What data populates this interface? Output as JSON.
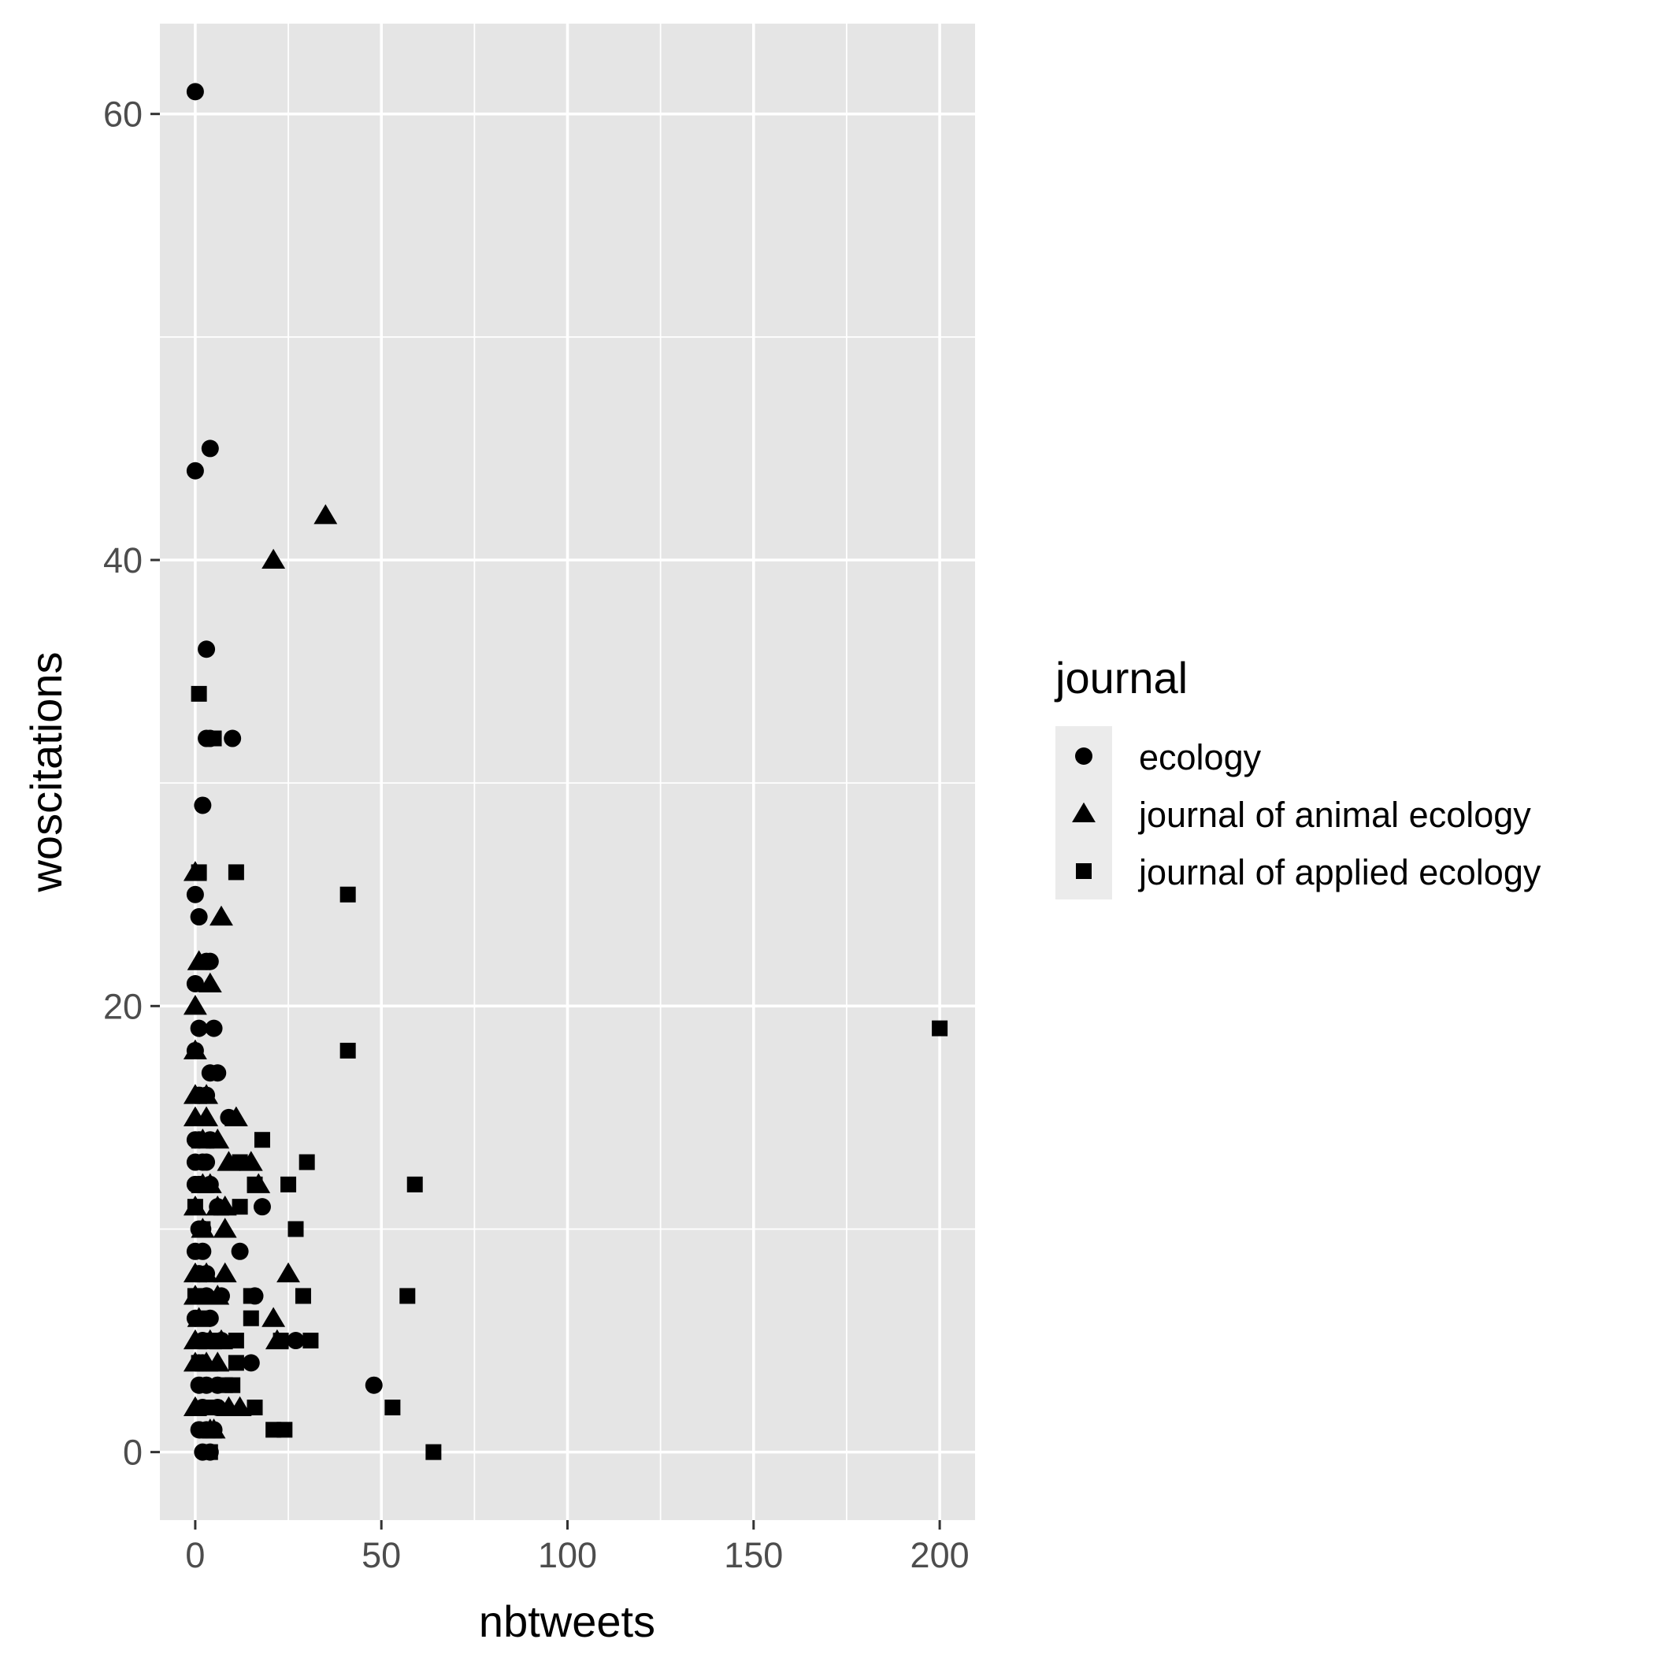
{
  "chart_data": {
    "type": "scatter",
    "xlabel": "nbtweets",
    "ylabel": "woscitations",
    "xlim": [
      -9.5,
      209.5
    ],
    "ylim": [
      -3.05,
      64.05
    ],
    "x_ticks": [
      0,
      50,
      100,
      150,
      200
    ],
    "x_tick_labels": [
      "0",
      "50",
      "100",
      "150",
      "200"
    ],
    "y_ticks": [
      0,
      20,
      40,
      60
    ],
    "y_tick_labels": [
      "0",
      "20",
      "40",
      "60"
    ],
    "grid": true,
    "panel_background": "#e5e5e5",
    "grid_color": "#ffffff",
    "point_color": "#000000",
    "legend": {
      "title": "journal",
      "position": "right",
      "entries": [
        {
          "label": "ecology",
          "shape": "circle"
        },
        {
          "label": "journal of animal ecology",
          "shape": "triangle"
        },
        {
          "label": "journal of applied ecology",
          "shape": "square"
        }
      ]
    },
    "series": [
      {
        "name": "ecology",
        "shape": "circle",
        "points": [
          [
            0,
            61
          ],
          [
            4,
            45
          ],
          [
            0,
            44
          ],
          [
            3,
            36
          ],
          [
            10,
            32
          ],
          [
            4,
            32
          ],
          [
            3,
            32
          ],
          [
            2,
            29
          ],
          [
            0,
            25
          ],
          [
            1,
            24
          ],
          [
            4,
            22
          ],
          [
            3,
            22
          ],
          [
            0,
            21
          ],
          [
            1,
            19
          ],
          [
            5,
            19
          ],
          [
            0,
            18
          ],
          [
            6,
            17
          ],
          [
            4,
            17
          ],
          [
            3,
            16
          ],
          [
            1,
            16
          ],
          [
            9,
            15
          ],
          [
            4,
            14
          ],
          [
            1,
            14
          ],
          [
            0,
            14
          ],
          [
            3,
            13
          ],
          [
            2,
            13
          ],
          [
            0,
            13
          ],
          [
            0,
            12
          ],
          [
            1,
            12
          ],
          [
            4,
            12
          ],
          [
            18,
            11
          ],
          [
            6,
            11
          ],
          [
            2,
            10
          ],
          [
            1,
            10
          ],
          [
            12,
            9
          ],
          [
            2,
            9
          ],
          [
            0,
            9
          ],
          [
            1,
            8
          ],
          [
            3,
            8
          ],
          [
            7,
            7
          ],
          [
            3,
            7
          ],
          [
            16,
            7
          ],
          [
            0,
            6
          ],
          [
            4,
            6
          ],
          [
            27,
            5
          ],
          [
            2,
            5
          ],
          [
            7,
            5
          ],
          [
            1,
            4
          ],
          [
            15,
            4
          ],
          [
            2,
            4
          ],
          [
            48,
            3
          ],
          [
            3,
            3
          ],
          [
            1,
            3
          ],
          [
            6,
            3
          ],
          [
            2,
            2
          ],
          [
            6,
            2
          ],
          [
            1,
            1
          ],
          [
            3,
            1
          ],
          [
            5,
            1
          ],
          [
            2,
            0
          ],
          [
            4,
            0
          ]
        ]
      },
      {
        "name": "journal of animal ecology",
        "shape": "triangle",
        "points": [
          [
            35,
            42
          ],
          [
            21,
            40
          ],
          [
            0,
            26
          ],
          [
            7,
            24
          ],
          [
            1,
            22
          ],
          [
            4,
            21
          ],
          [
            0,
            20
          ],
          [
            0,
            18
          ],
          [
            0,
            16
          ],
          [
            3,
            16
          ],
          [
            0,
            15
          ],
          [
            11,
            15
          ],
          [
            3,
            15
          ],
          [
            6,
            14
          ],
          [
            2,
            14
          ],
          [
            15,
            13
          ],
          [
            9,
            13
          ],
          [
            4,
            12
          ],
          [
            17,
            12
          ],
          [
            2,
            12
          ],
          [
            6,
            11
          ],
          [
            8,
            11
          ],
          [
            0,
            11
          ],
          [
            8,
            10
          ],
          [
            2,
            10
          ],
          [
            0,
            8
          ],
          [
            8,
            8
          ],
          [
            3,
            8
          ],
          [
            25,
            8
          ],
          [
            0,
            7
          ],
          [
            6,
            7
          ],
          [
            21,
            6
          ],
          [
            1,
            6
          ],
          [
            7,
            5
          ],
          [
            0,
            5
          ],
          [
            22,
            5
          ],
          [
            4,
            5
          ],
          [
            0,
            4
          ],
          [
            6,
            4
          ],
          [
            3,
            4
          ],
          [
            0,
            2
          ],
          [
            12,
            2
          ],
          [
            9,
            2
          ],
          [
            5,
            1
          ],
          [
            4,
            1
          ]
        ]
      },
      {
        "name": "journal of applied ecology",
        "shape": "square",
        "points": [
          [
            1,
            34
          ],
          [
            5,
            32
          ],
          [
            1,
            26
          ],
          [
            11,
            26
          ],
          [
            41,
            25
          ],
          [
            200,
            19
          ],
          [
            41,
            18
          ],
          [
            18,
            14
          ],
          [
            30,
            13
          ],
          [
            12,
            13
          ],
          [
            16,
            12
          ],
          [
            25,
            12
          ],
          [
            59,
            12
          ],
          [
            0,
            11
          ],
          [
            12,
            11
          ],
          [
            2,
            10
          ],
          [
            27,
            10
          ],
          [
            0,
            7
          ],
          [
            15,
            7
          ],
          [
            29,
            7
          ],
          [
            57,
            7
          ],
          [
            2,
            6
          ],
          [
            15,
            6
          ],
          [
            11,
            5
          ],
          [
            23,
            5
          ],
          [
            31,
            5
          ],
          [
            4,
            5
          ],
          [
            11,
            4
          ],
          [
            1,
            4
          ],
          [
            10,
            3
          ],
          [
            8,
            3
          ],
          [
            16,
            2
          ],
          [
            53,
            2
          ],
          [
            5,
            2
          ],
          [
            21,
            1
          ],
          [
            24,
            1
          ],
          [
            4,
            0
          ],
          [
            64,
            0
          ]
        ]
      }
    ]
  }
}
